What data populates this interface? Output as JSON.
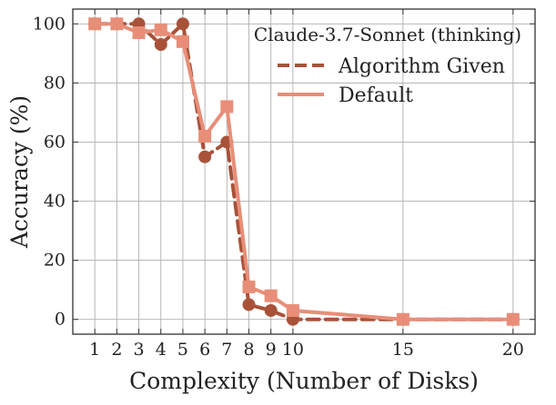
{
  "chart_data": {
    "type": "line",
    "xlabel": "Complexity (Number of Disks)",
    "ylabel": "Accuracy (%)",
    "xlim": [
      0,
      21
    ],
    "ylim": [
      -5,
      105
    ],
    "xticks": [
      1,
      2,
      3,
      4,
      5,
      6,
      7,
      8,
      9,
      10,
      15,
      20
    ],
    "yticks": [
      0,
      20,
      40,
      60,
      80,
      100
    ],
    "grid": true,
    "legend": {
      "title": "Claude-3.7-Sonnet (thinking)",
      "placement": "top-right"
    },
    "series": [
      {
        "name": "Algorithm Given",
        "color": "#a9523a",
        "line_style": "dashed",
        "marker": "circle",
        "x": [
          1,
          2,
          3,
          4,
          5,
          6,
          7,
          8,
          9,
          10,
          15,
          20
        ],
        "y": [
          100,
          100,
          100,
          93,
          100,
          55,
          60,
          5,
          3,
          0,
          0,
          0
        ]
      },
      {
        "name": "Default",
        "color": "#e88e78",
        "line_style": "solid",
        "marker": "square",
        "x": [
          1,
          2,
          3,
          4,
          5,
          6,
          7,
          8,
          9,
          10,
          15,
          20
        ],
        "y": [
          100,
          100,
          97,
          98,
          94,
          62,
          72,
          11,
          8,
          3,
          0,
          0
        ]
      }
    ]
  }
}
